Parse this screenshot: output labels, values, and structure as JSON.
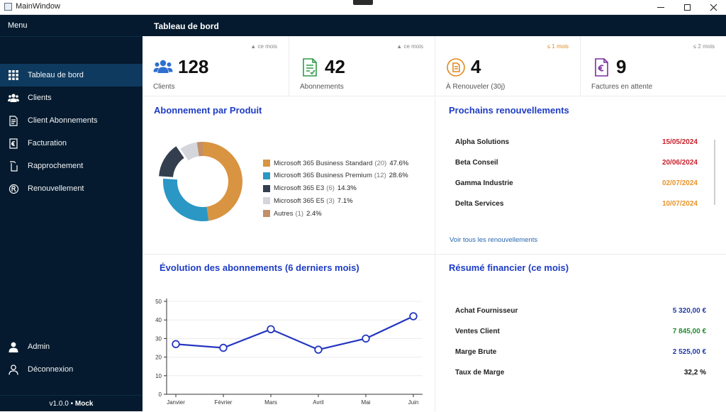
{
  "window": {
    "title": "MainWindow"
  },
  "sidebar": {
    "menu_label": "Menu",
    "items": [
      {
        "label": "Tableau de bord",
        "icon": "grid-icon",
        "active": true
      },
      {
        "label": "Clients",
        "icon": "users-icon",
        "active": false
      },
      {
        "label": "Client Abonnements",
        "icon": "document-icon",
        "active": false
      },
      {
        "label": "Facturation",
        "icon": "invoice-icon",
        "active": false
      },
      {
        "label": "Rapprochement",
        "icon": "reconcile-icon",
        "active": false
      },
      {
        "label": "Renouvellement",
        "icon": "renew-icon",
        "active": false
      }
    ],
    "bottom_items": [
      {
        "label": "Admin",
        "icon": "user-icon"
      },
      {
        "label": "Déconnexion",
        "icon": "logout-user-icon"
      }
    ],
    "version": "v1.0.0",
    "separator": "•",
    "mode": "Mock"
  },
  "header": {
    "title": "Tableau de bord"
  },
  "kpis": [
    {
      "value": "128",
      "label": "Clients",
      "trend": "▲ ce mois",
      "icon": "users-icon",
      "trend_color": "#888888"
    },
    {
      "value": "42",
      "label": "Abonnements",
      "trend": "▲ ce mois",
      "icon": "subscription-doc-icon",
      "trend_color": "#888888"
    },
    {
      "value": "4",
      "label": "À Renouveler (30j)",
      "trend": "≤ 1 mois",
      "icon": "renew-doc-icon",
      "trend_color": "#e08a1e"
    },
    {
      "value": "9",
      "label": "Factures en attente",
      "trend": "≤ 2 mois",
      "icon": "euro-invoice-icon",
      "trend_color": "#888888"
    }
  ],
  "product_panel": {
    "title": "Abonnement par Produit",
    "chart_data": {
      "type": "pie",
      "categories": [
        "Microsoft 365 Business Standard",
        "Microsoft 365 Business Premium",
        "Microsoft 365 E3",
        "Microsoft 365 E5",
        "Autres"
      ],
      "values": [
        20,
        12,
        6,
        3,
        1
      ],
      "counts_label": [
        "(20)",
        "(12)",
        "(6)",
        "(3)",
        "(1)"
      ],
      "percent_label": [
        "47.6%",
        "28.6%",
        "14.3%",
        "7.1%",
        "2.4%"
      ],
      "colors": [
        "#d99441",
        "#2a97c4",
        "#333f4f",
        "#d4d6dc",
        "#c28f68"
      ],
      "legend": "right"
    }
  },
  "renewals_panel": {
    "title": "Prochains renouvellements",
    "rows": [
      {
        "name": "Alpha Solutions",
        "date": "15/05/2024",
        "color": "#c8202c"
      },
      {
        "name": "Beta Conseil",
        "date": "20/06/2024",
        "color": "#c8202c"
      },
      {
        "name": "Gamma Industrie",
        "date": "02/07/2024",
        "color": "#e8932a"
      },
      {
        "name": "Delta Services",
        "date": "10/07/2024",
        "color": "#e8932a"
      }
    ],
    "link": "Voir tous les renouvellements"
  },
  "evolution_panel": {
    "title": "Évolution des abonnements (6 derniers mois)",
    "chart_data": {
      "type": "line",
      "categories": [
        "Janvier",
        "Février",
        "Mars",
        "Avril",
        "Mai",
        "Juin"
      ],
      "series": [
        {
          "values": [
            27,
            25,
            35,
            24,
            30,
            42
          ]
        }
      ],
      "ylim": [
        0,
        50
      ],
      "yticks": [
        0,
        10,
        20,
        30,
        40,
        50
      ],
      "grid": true,
      "color": "#2436c0"
    }
  },
  "finance_panel": {
    "title": "Résumé financier (ce mois)",
    "rows": [
      {
        "name": "Achat Fournisseur",
        "value": "5 320,00 €",
        "color": "#1f3aa8"
      },
      {
        "name": "Ventes Client",
        "value": "7 845,00 €",
        "color": "#1f8a2e"
      },
      {
        "name": "Marge Brute",
        "value": "2 525,00 €",
        "color": "#1f3aa8"
      },
      {
        "name": "Taux de Marge",
        "value": "32,2 %",
        "color": "#111111"
      }
    ]
  }
}
